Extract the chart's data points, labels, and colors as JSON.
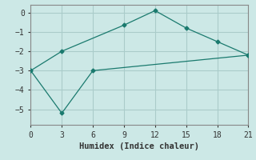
{
  "xlabel": "Humidex (Indice chaleur)",
  "bg_color": "#cce8e6",
  "grid_color": "#aaccca",
  "line_color": "#1a7a6e",
  "xlim": [
    0,
    21
  ],
  "ylim": [
    -5.8,
    0.4
  ],
  "xticks": [
    0,
    3,
    6,
    9,
    12,
    15,
    18,
    21
  ],
  "yticks": [
    0,
    -1,
    -2,
    -3,
    -4,
    -5
  ],
  "line1_x": [
    0,
    3,
    9,
    12,
    15,
    18,
    21
  ],
  "line1_y": [
    -3.0,
    -2.0,
    -0.65,
    0.1,
    -0.8,
    -1.5,
    -2.2
  ],
  "line2_x": [
    0,
    3,
    6,
    21
  ],
  "line2_y": [
    -3.0,
    -5.2,
    -3.0,
    -2.2
  ],
  "marker": "D",
  "markersize": 2.5,
  "linewidth": 0.9
}
